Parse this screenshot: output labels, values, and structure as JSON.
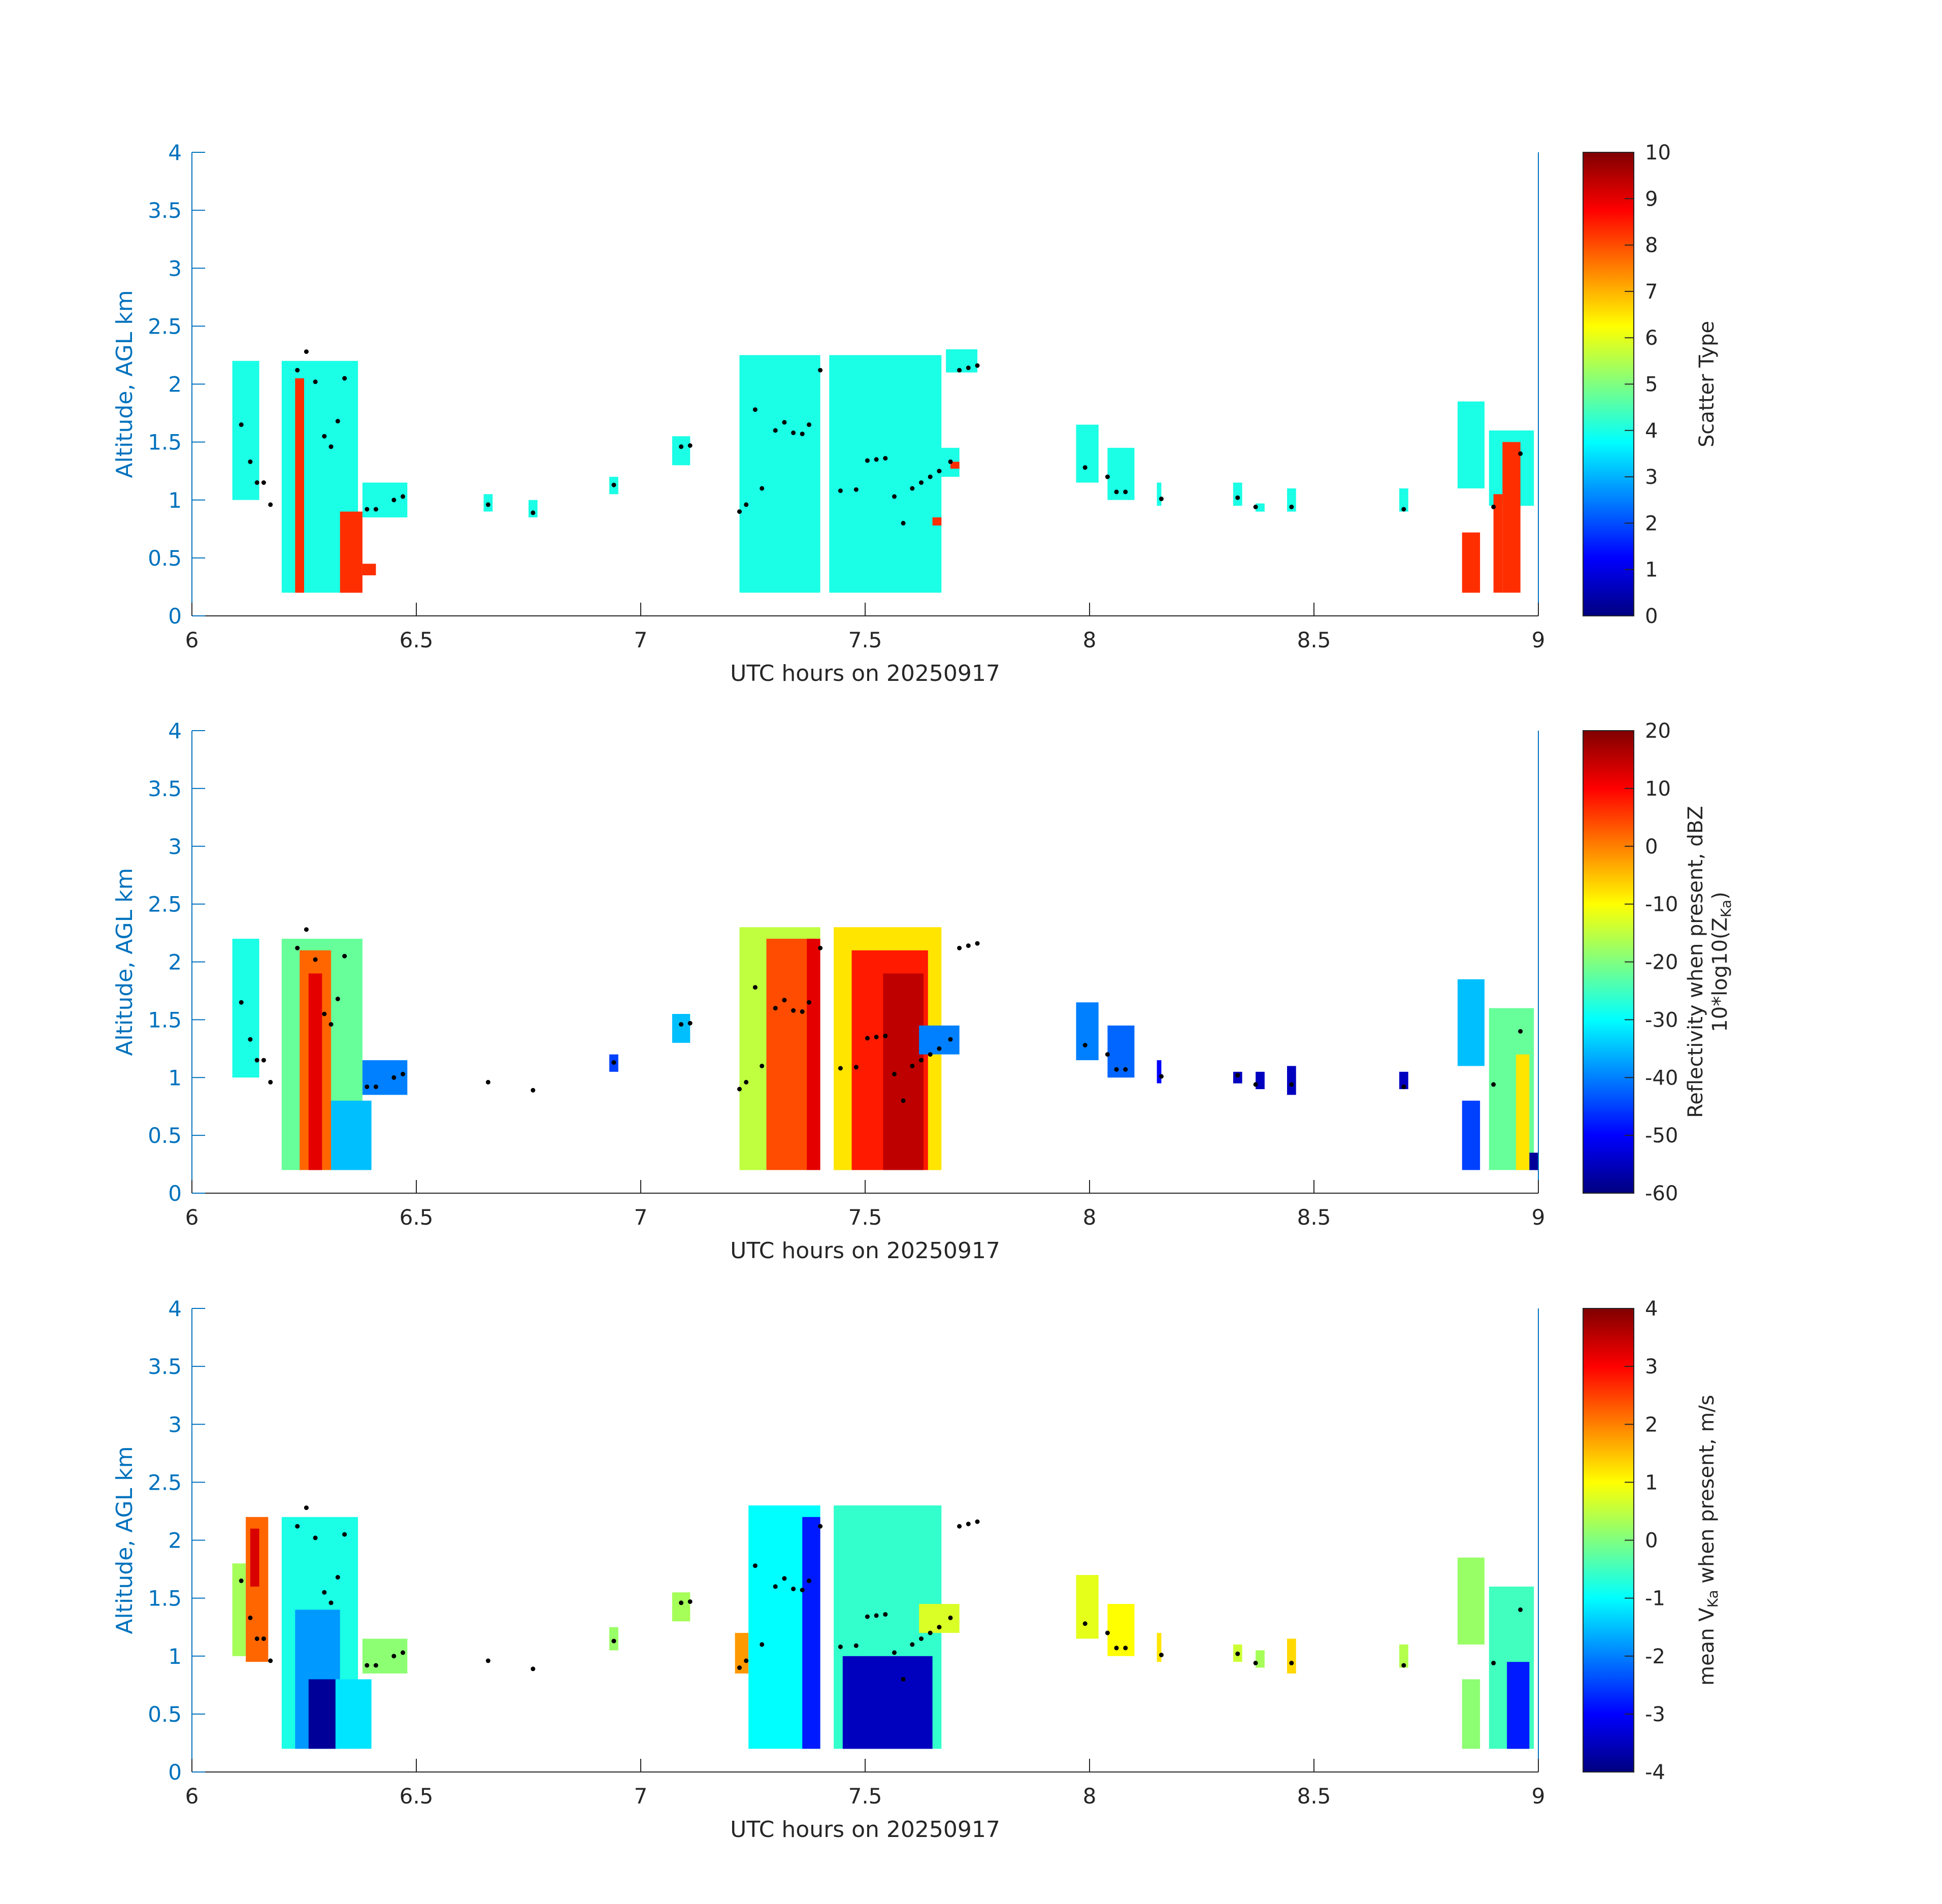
{
  "chart_data": [
    {
      "type": "heatmap",
      "xlabel": "UTC hours on 20250917",
      "ylabel": "Altitude, AGL km",
      "xlim": [
        6,
        9
      ],
      "ylim": [
        0,
        4
      ],
      "xticks": [
        "6",
        "6.5",
        "7",
        "7.5",
        "8",
        "8.5",
        "9"
      ],
      "yticks": [
        "0",
        "0.5",
        "1",
        "1.5",
        "2",
        "2.5",
        "3",
        "3.5",
        "4"
      ],
      "colorbar": {
        "label": "Scatter Type",
        "range": [
          0,
          10
        ],
        "ticks": [
          "0",
          "1",
          "2",
          "3",
          "4",
          "5",
          "6",
          "7",
          "8",
          "9",
          "10"
        ]
      },
      "regions": [
        {
          "x": [
            6.09,
            6.15
          ],
          "y": [
            1.0,
            2.2
          ],
          "value": 4
        },
        {
          "x": [
            6.2,
            6.37
          ],
          "y": [
            0.2,
            2.2
          ],
          "value": 4
        },
        {
          "x": [
            6.23,
            6.25
          ],
          "y": [
            0.2,
            2.05
          ],
          "value": 8.3
        },
        {
          "x": [
            6.33,
            6.38
          ],
          "y": [
            0.2,
            0.9
          ],
          "value": 8.3
        },
        {
          "x": [
            6.38,
            6.41
          ],
          "y": [
            0.35,
            0.45
          ],
          "value": 8.3
        },
        {
          "x": [
            6.38,
            6.48
          ],
          "y": [
            0.85,
            1.15
          ],
          "value": 4
        },
        {
          "x": [
            6.65,
            6.67
          ],
          "y": [
            0.9,
            1.05
          ],
          "value": 4
        },
        {
          "x": [
            6.75,
            6.77
          ],
          "y": [
            0.85,
            1.0
          ],
          "value": 4
        },
        {
          "x": [
            6.93,
            6.95
          ],
          "y": [
            1.05,
            1.2
          ],
          "value": 4
        },
        {
          "x": [
            7.07,
            7.11
          ],
          "y": [
            1.3,
            1.55
          ],
          "value": 4
        },
        {
          "x": [
            7.22,
            7.4
          ],
          "y": [
            0.2,
            2.25
          ],
          "value": 4
        },
        {
          "x": [
            7.42,
            7.67
          ],
          "y": [
            0.2,
            2.25
          ],
          "value": 4
        },
        {
          "x": [
            7.62,
            7.71
          ],
          "y": [
            1.2,
            1.45
          ],
          "value": 4
        },
        {
          "x": [
            7.69,
            7.71
          ],
          "y": [
            1.27,
            1.33
          ],
          "value": 8.3
        },
        {
          "x": [
            7.65,
            7.67
          ],
          "y": [
            0.78,
            0.85
          ],
          "value": 8.3
        },
        {
          "x": [
            7.68,
            7.75
          ],
          "y": [
            2.1,
            2.3
          ],
          "value": 4
        },
        {
          "x": [
            7.97,
            8.02
          ],
          "y": [
            1.15,
            1.65
          ],
          "value": 4
        },
        {
          "x": [
            8.04,
            8.1
          ],
          "y": [
            1.0,
            1.45
          ],
          "value": 4
        },
        {
          "x": [
            8.15,
            8.16
          ],
          "y": [
            0.95,
            1.15
          ],
          "value": 4
        },
        {
          "x": [
            8.32,
            8.34
          ],
          "y": [
            0.95,
            1.15
          ],
          "value": 4
        },
        {
          "x": [
            8.37,
            8.39
          ],
          "y": [
            0.9,
            0.97
          ],
          "value": 4
        },
        {
          "x": [
            8.44,
            8.46
          ],
          "y": [
            0.9,
            1.1
          ],
          "value": 4
        },
        {
          "x": [
            8.69,
            8.71
          ],
          "y": [
            0.9,
            1.1
          ],
          "value": 4
        },
        {
          "x": [
            8.82,
            8.88
          ],
          "y": [
            1.1,
            1.85
          ],
          "value": 4
        },
        {
          "x": [
            8.83,
            8.87
          ],
          "y": [
            0.2,
            0.72
          ],
          "value": 8.3
        },
        {
          "x": [
            8.89,
            8.99
          ],
          "y": [
            0.95,
            1.6
          ],
          "value": 4
        },
        {
          "x": [
            8.9,
            8.92
          ],
          "y": [
            0.2,
            1.05
          ],
          "value": 8.3
        },
        {
          "x": [
            8.92,
            8.96
          ],
          "y": [
            0.2,
            1.5
          ],
          "value": 8.3
        }
      ]
    },
    {
      "type": "heatmap",
      "xlabel": "UTC hours on 20250917",
      "ylabel": "Altitude, AGL km",
      "xlim": [
        6,
        9
      ],
      "ylim": [
        0,
        4
      ],
      "xticks": [
        "6",
        "6.5",
        "7",
        "7.5",
        "8",
        "8.5",
        "9"
      ],
      "yticks": [
        "0",
        "0.5",
        "1",
        "1.5",
        "2",
        "2.5",
        "3",
        "3.5",
        "4"
      ],
      "colorbar": {
        "label": "Reflectivity when present, dBZ",
        "label2_main": "10*log10(Z",
        "label2_sub": "Ka",
        "label2_end": ")",
        "range": [
          -60,
          20
        ],
        "ticks": [
          "-60",
          "-50",
          "-40",
          "-30",
          "-20",
          "-10",
          "0",
          "10",
          "20"
        ]
      },
      "regions": [
        {
          "x": [
            6.09,
            6.15
          ],
          "y": [
            1.0,
            2.2
          ],
          "value": -28
        },
        {
          "x": [
            6.2,
            6.38
          ],
          "y": [
            0.2,
            2.2
          ],
          "value": -22
        },
        {
          "x": [
            6.24,
            6.31
          ],
          "y": [
            0.2,
            2.1
          ],
          "value": 2
        },
        {
          "x": [
            6.26,
            6.29
          ],
          "y": [
            0.2,
            1.9
          ],
          "value": 12
        },
        {
          "x": [
            6.31,
            6.4
          ],
          "y": [
            0.2,
            0.8
          ],
          "value": -35
        },
        {
          "x": [
            6.38,
            6.48
          ],
          "y": [
            0.85,
            1.15
          ],
          "value": -40
        },
        {
          "x": [
            6.93,
            6.95
          ],
          "y": [
            1.05,
            1.2
          ],
          "value": -45
        },
        {
          "x": [
            7.07,
            7.11
          ],
          "y": [
            1.3,
            1.55
          ],
          "value": -35
        },
        {
          "x": [
            7.22,
            7.4
          ],
          "y": [
            0.2,
            2.3
          ],
          "value": -15
        },
        {
          "x": [
            7.28,
            7.38
          ],
          "y": [
            0.2,
            2.2
          ],
          "value": 4
        },
        {
          "x": [
            7.37,
            7.4
          ],
          "y": [
            0.2,
            2.2
          ],
          "value": 12
        },
        {
          "x": [
            7.43,
            7.67
          ],
          "y": [
            0.2,
            2.3
          ],
          "value": -8
        },
        {
          "x": [
            7.47,
            7.64
          ],
          "y": [
            0.2,
            2.1
          ],
          "value": 8
        },
        {
          "x": [
            7.54,
            7.63
          ],
          "y": [
            0.2,
            1.9
          ],
          "value": 15
        },
        {
          "x": [
            7.62,
            7.71
          ],
          "y": [
            1.2,
            1.45
          ],
          "value": -40
        },
        {
          "x": [
            7.97,
            8.02
          ],
          "y": [
            1.15,
            1.65
          ],
          "value": -40
        },
        {
          "x": [
            8.04,
            8.1
          ],
          "y": [
            1.0,
            1.45
          ],
          "value": -42
        },
        {
          "x": [
            8.15,
            8.16
          ],
          "y": [
            0.95,
            1.15
          ],
          "value": -50
        },
        {
          "x": [
            8.32,
            8.34
          ],
          "y": [
            0.95,
            1.05
          ],
          "value": -55
        },
        {
          "x": [
            8.37,
            8.39
          ],
          "y": [
            0.9,
            1.05
          ],
          "value": -55
        },
        {
          "x": [
            8.44,
            8.46
          ],
          "y": [
            0.85,
            1.1
          ],
          "value": -55
        },
        {
          "x": [
            8.69,
            8.71
          ],
          "y": [
            0.9,
            1.05
          ],
          "value": -55
        },
        {
          "x": [
            8.82,
            8.88
          ],
          "y": [
            1.1,
            1.85
          ],
          "value": -35
        },
        {
          "x": [
            8.83,
            8.87
          ],
          "y": [
            0.2,
            0.8
          ],
          "value": -45
        },
        {
          "x": [
            8.89,
            8.99
          ],
          "y": [
            0.2,
            1.6
          ],
          "value": -22
        },
        {
          "x": [
            8.95,
            8.98
          ],
          "y": [
            0.2,
            1.2
          ],
          "value": -8
        },
        {
          "x": [
            8.98,
            9.0
          ],
          "y": [
            0.2,
            0.35
          ],
          "value": -58
        }
      ]
    },
    {
      "type": "heatmap",
      "xlabel": "UTC hours on 20250917",
      "ylabel": "Altitude, AGL km",
      "xlim": [
        6,
        9
      ],
      "ylim": [
        0,
        4
      ],
      "xticks": [
        "6",
        "6.5",
        "7",
        "7.5",
        "8",
        "8.5",
        "9"
      ],
      "yticks": [
        "0",
        "0.5",
        "1",
        "1.5",
        "2",
        "2.5",
        "3",
        "3.5",
        "4"
      ],
      "colorbar": {
        "label_pre": "mean V",
        "label_sub": "Ka",
        "label_post": " when present, m/s",
        "range": [
          -4,
          4
        ],
        "ticks": [
          "-4",
          "-3",
          "-2",
          "-1",
          "0",
          "1",
          "2",
          "3",
          "4"
        ]
      },
      "regions": [
        {
          "x": [
            6.09,
            6.12
          ],
          "y": [
            1.0,
            1.8
          ],
          "value": 0.3
        },
        {
          "x": [
            6.12,
            6.17
          ],
          "y": [
            0.95,
            2.2
          ],
          "value": 2.2
        },
        {
          "x": [
            6.13,
            6.15
          ],
          "y": [
            1.6,
            2.1
          ],
          "value": 3.3
        },
        {
          "x": [
            6.2,
            6.37
          ],
          "y": [
            0.2,
            2.2
          ],
          "value": -0.8
        },
        {
          "x": [
            6.23,
            6.33
          ],
          "y": [
            0.2,
            1.4
          ],
          "value": -1.8
        },
        {
          "x": [
            6.26,
            6.32
          ],
          "y": [
            0.2,
            0.8
          ],
          "value": -3.8
        },
        {
          "x": [
            6.32,
            6.4
          ],
          "y": [
            0.2,
            0.8
          ],
          "value": -1.2
        },
        {
          "x": [
            6.38,
            6.48
          ],
          "y": [
            0.85,
            1.15
          ],
          "value": 0.1
        },
        {
          "x": [
            6.93,
            6.95
          ],
          "y": [
            1.05,
            1.25
          ],
          "value": 0.2
        },
        {
          "x": [
            7.07,
            7.11
          ],
          "y": [
            1.3,
            1.55
          ],
          "value": 0.3
        },
        {
          "x": [
            7.21,
            7.24
          ],
          "y": [
            0.85,
            1.2
          ],
          "value": 1.8
        },
        {
          "x": [
            7.24,
            7.4
          ],
          "y": [
            0.2,
            2.3
          ],
          "value": -1.0
        },
        {
          "x": [
            7.36,
            7.4
          ],
          "y": [
            0.2,
            2.2
          ],
          "value": -2.8
        },
        {
          "x": [
            7.43,
            7.67
          ],
          "y": [
            0.2,
            2.3
          ],
          "value": -0.6
        },
        {
          "x": [
            7.45,
            7.65
          ],
          "y": [
            0.2,
            1.0
          ],
          "value": -3.5
        },
        {
          "x": [
            7.62,
            7.71
          ],
          "y": [
            1.2,
            1.45
          ],
          "value": 0.7
        },
        {
          "x": [
            7.97,
            8.02
          ],
          "y": [
            1.15,
            1.7
          ],
          "value": 0.8
        },
        {
          "x": [
            8.04,
            8.1
          ],
          "y": [
            1.0,
            1.45
          ],
          "value": 1.0
        },
        {
          "x": [
            8.15,
            8.16
          ],
          "y": [
            0.95,
            1.2
          ],
          "value": 1.2
        },
        {
          "x": [
            8.32,
            8.34
          ],
          "y": [
            0.95,
            1.1
          ],
          "value": 0.6
        },
        {
          "x": [
            8.37,
            8.39
          ],
          "y": [
            0.9,
            1.05
          ],
          "value": 0.3
        },
        {
          "x": [
            8.44,
            8.46
          ],
          "y": [
            0.85,
            1.15
          ],
          "value": 1.3
        },
        {
          "x": [
            8.69,
            8.71
          ],
          "y": [
            0.9,
            1.1
          ],
          "value": 0.4
        },
        {
          "x": [
            8.82,
            8.88
          ],
          "y": [
            1.1,
            1.85
          ],
          "value": 0.2
        },
        {
          "x": [
            8.83,
            8.87
          ],
          "y": [
            0.2,
            0.8
          ],
          "value": 0.1
        },
        {
          "x": [
            8.89,
            8.99
          ],
          "y": [
            0.2,
            1.6
          ],
          "value": -0.5
        },
        {
          "x": [
            8.93,
            8.98
          ],
          "y": [
            0.2,
            0.95
          ],
          "value": -2.8
        }
      ]
    }
  ],
  "overlay_points": {
    "x": [
      6.11,
      6.13,
      6.145,
      6.16,
      6.175,
      6.235,
      6.255,
      6.275,
      6.295,
      6.31,
      6.325,
      6.34,
      6.39,
      6.41,
      6.45,
      6.47,
      6.66,
      6.76,
      6.94,
      7.09,
      7.11,
      7.22,
      7.235,
      7.255,
      7.27,
      7.3,
      7.32,
      7.34,
      7.36,
      7.375,
      7.4,
      7.445,
      7.48,
      7.505,
      7.525,
      7.545,
      7.565,
      7.585,
      7.605,
      7.625,
      7.645,
      7.665,
      7.69,
      7.71,
      7.73,
      7.75,
      7.99,
      8.04,
      8.06,
      8.08,
      8.16,
      8.33,
      8.37,
      8.45,
      8.7,
      8.9,
      8.96
    ],
    "y": [
      1.65,
      1.33,
      1.15,
      1.15,
      0.96,
      2.12,
      2.28,
      2.02,
      1.55,
      1.46,
      1.68,
      2.05,
      0.92,
      0.92,
      1.0,
      1.03,
      0.96,
      0.89,
      1.13,
      1.46,
      1.47,
      0.9,
      0.96,
      1.78,
      1.1,
      1.6,
      1.67,
      1.58,
      1.57,
      1.65,
      2.12,
      1.08,
      1.09,
      1.34,
      1.35,
      1.36,
      1.03,
      0.8,
      1.1,
      1.15,
      1.2,
      1.25,
      1.33,
      2.12,
      2.14,
      2.16,
      1.28,
      1.2,
      1.07,
      1.07,
      1.01,
      1.02,
      0.94,
      0.94,
      0.92,
      0.94,
      1.4
    ]
  }
}
